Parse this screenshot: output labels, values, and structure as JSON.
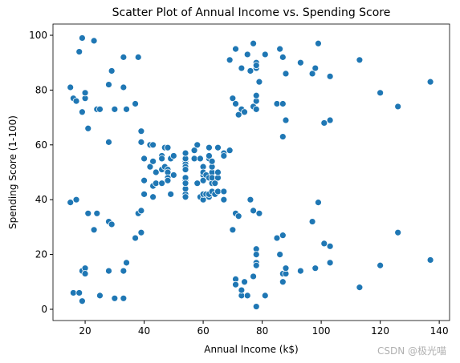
{
  "chart_data": {
    "type": "scatter",
    "title": "Scatter Plot of Annual Income vs. Spending Score",
    "xlabel": "Annual Income (k$)",
    "ylabel": "Spending Score (1-100)",
    "watermark": "CSDN @极光喵",
    "color": "#1f77b4",
    "xlim": [
      9.1,
      143.5
    ],
    "ylim": [
      -4.1,
      104.1
    ],
    "xticks": [
      20,
      40,
      60,
      80,
      100,
      120,
      140
    ],
    "yticks": [
      0,
      20,
      40,
      60,
      80,
      100
    ],
    "x": [
      15,
      15,
      16,
      16,
      17,
      17,
      18,
      18,
      19,
      19,
      19,
      19,
      20,
      20,
      20,
      20,
      21,
      21,
      23,
      23,
      24,
      24,
      25,
      25,
      28,
      28,
      28,
      28,
      29,
      29,
      30,
      30,
      33,
      33,
      33,
      33,
      34,
      34,
      37,
      37,
      38,
      38,
      39,
      39,
      39,
      39,
      40,
      40,
      40,
      40,
      42,
      42,
      43,
      43,
      43,
      43,
      44,
      44,
      46,
      46,
      46,
      46,
      47,
      47,
      48,
      48,
      48,
      48,
      48,
      48,
      49,
      49,
      50,
      50,
      54,
      54,
      54,
      54,
      54,
      54,
      54,
      54,
      54,
      54,
      54,
      54,
      57,
      57,
      58,
      58,
      59,
      59,
      60,
      60,
      60,
      60,
      60,
      60,
      61,
      61,
      62,
      62,
      62,
      62,
      62,
      62,
      63,
      63,
      63,
      63,
      63,
      63,
      64,
      64,
      65,
      65,
      65,
      65,
      67,
      67,
      67,
      67,
      69,
      69,
      70,
      70,
      71,
      71,
      71,
      71,
      71,
      71,
      72,
      72,
      73,
      73,
      73,
      73,
      74,
      74,
      75,
      75,
      76,
      76,
      77,
      77,
      77,
      77,
      78,
      78,
      78,
      78,
      78,
      78,
      78,
      78,
      78,
      78,
      78,
      78,
      79,
      79,
      81,
      81,
      85,
      85,
      86,
      86,
      87,
      87,
      87,
      87,
      87,
      87,
      88,
      88,
      88,
      88,
      93,
      93,
      97,
      97,
      98,
      98,
      99,
      99,
      101,
      101,
      103,
      103,
      103,
      103,
      113,
      113,
      120,
      120,
      126,
      126,
      137,
      137
    ],
    "values": [
      39,
      81,
      6,
      77,
      40,
      76,
      6,
      94,
      3,
      72,
      14,
      99,
      15,
      77,
      13,
      79,
      35,
      66,
      29,
      98,
      35,
      73,
      5,
      73,
      14,
      82,
      32,
      61,
      31,
      87,
      4,
      73,
      4,
      92,
      14,
      81,
      17,
      73,
      26,
      75,
      35,
      92,
      36,
      61,
      28,
      65,
      55,
      47,
      42,
      42,
      52,
      60,
      54,
      60,
      45,
      41,
      50,
      46,
      51,
      46,
      56,
      55,
      52,
      59,
      51,
      59,
      50,
      48,
      59,
      47,
      55,
      42,
      49,
      56,
      47,
      54,
      53,
      48,
      52,
      42,
      51,
      55,
      41,
      44,
      57,
      46,
      58,
      55,
      60,
      46,
      55,
      41,
      49,
      40,
      42,
      52,
      47,
      50,
      42,
      49,
      41,
      48,
      59,
      55,
      56,
      42,
      50,
      46,
      43,
      48,
      52,
      54,
      42,
      46,
      48,
      50,
      43,
      59,
      43,
      57,
      56,
      40,
      58,
      91,
      29,
      77,
      35,
      95,
      11,
      75,
      9,
      75,
      34,
      71,
      5,
      88,
      7,
      73,
      10,
      72,
      5,
      93,
      40,
      87,
      12,
      97,
      36,
      74,
      22,
      90,
      17,
      88,
      20,
      76,
      16,
      89,
      1,
      78,
      1,
      73,
      35,
      83,
      5,
      93,
      26,
      75,
      20,
      95,
      27,
      63,
      13,
      75,
      10,
      92,
      13,
      86,
      15,
      69,
      14,
      90,
      32,
      86,
      15,
      88,
      39,
      97,
      24,
      68,
      17,
      85,
      23,
      69,
      8,
      91,
      16,
      79,
      28,
      74,
      18,
      83
    ]
  }
}
